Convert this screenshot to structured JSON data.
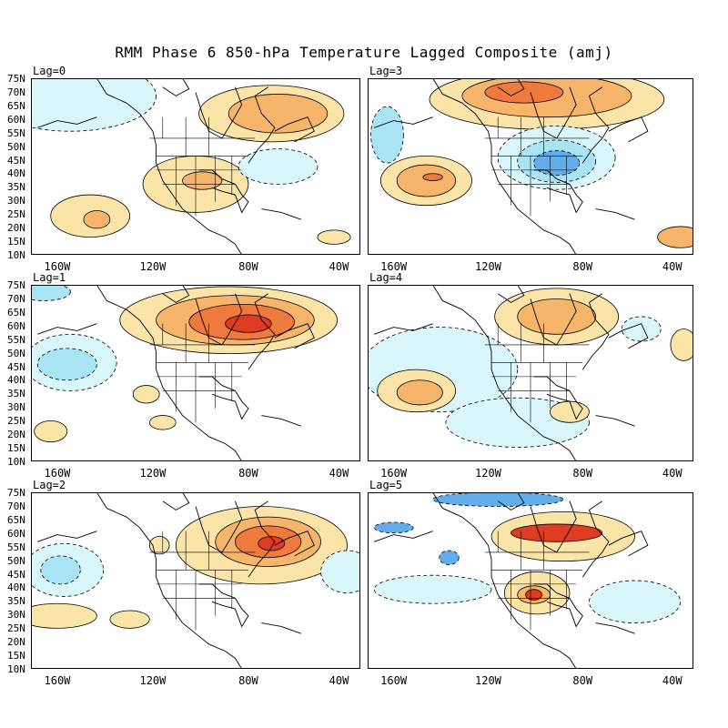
{
  "title": "RMM Phase 6 850-hPa Temperature Lagged Composite (amj)",
  "lat_labels": [
    "75N",
    "70N",
    "65N",
    "60N",
    "55N",
    "50N",
    "45N",
    "40N",
    "35N",
    "30N",
    "25N",
    "20N",
    "15N",
    "10N"
  ],
  "lon_labels": [
    "160W",
    "120W",
    "80W",
    "40W"
  ],
  "colors": {
    "warm1": "#fbe4a8",
    "warm2": "#f7b56b",
    "warm3": "#ef7a3e",
    "warm4": "#e03c22",
    "cold1": "#d9f6fb",
    "cold2": "#a9e4f4",
    "cold3": "#63aeea",
    "cold4": "#3b7fd6",
    "land": "#ffffff",
    "frame": "#000000"
  },
  "panels": [
    {
      "id": "lag0",
      "label": "Lag=0"
    },
    {
      "id": "lag3",
      "label": "Lag=3"
    },
    {
      "id": "lag1",
      "label": "Lag=1"
    },
    {
      "id": "lag4",
      "label": "Lag=4"
    },
    {
      "id": "lag2",
      "label": "Lag=2"
    },
    {
      "id": "lag5",
      "label": "Lag=5"
    }
  ]
}
